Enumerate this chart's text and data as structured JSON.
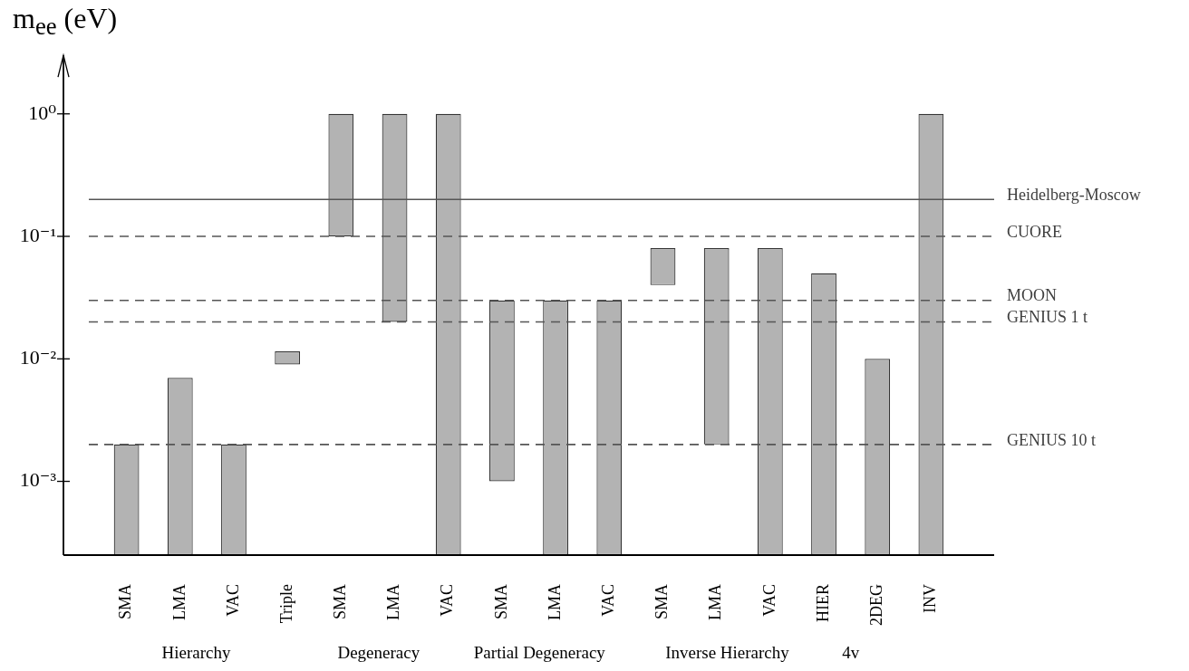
{
  "chart_data": {
    "type": "bar",
    "ylabel": "m$_{ee}$ (eV)",
    "categories": [
      "SMA",
      "LMA",
      "VAC",
      "Triple",
      "SMA",
      "LMA",
      "VAC",
      "SMA",
      "LMA",
      "VAC",
      "SMA",
      "LMA",
      "VAC",
      "HIER",
      "2DEG",
      "INV"
    ],
    "base": [
      0.00025,
      0.00025,
      0.00025,
      0.009,
      0.1,
      0.02,
      0.00025,
      0.001,
      0.00025,
      0.00025,
      0.04,
      0.002,
      0.00025,
      0.00025,
      0.00025,
      0.00025
    ],
    "values": [
      0.00175,
      0.00675,
      0.00175,
      0.0025,
      0.9,
      0.98,
      0.99975,
      0.029,
      0.02975,
      0.02975,
      0.04,
      0.078,
      0.07975,
      0.04975,
      0.00975,
      0.99975
    ],
    "color": "#b3b3b3",
    "log": true,
    "ylim": [
      0.00025,
      3
    ],
    "yticks": [
      {
        "value": 0.001,
        "label": "10⁻³"
      },
      {
        "value": 0.01,
        "label": "10⁻²"
      },
      {
        "value": 0.1,
        "label": "10⁻¹"
      },
      {
        "value": 1,
        "label": "10⁰"
      }
    ],
    "ref_lines": [
      {
        "axis": "y",
        "value": 0.2,
        "label": "Heidelberg-Moscow",
        "color": "#555555",
        "line_style": "solid"
      },
      {
        "axis": "y",
        "value": 0.1,
        "label": "CUORE",
        "color": "#555555",
        "line_style": "dashed"
      },
      {
        "axis": "y",
        "value": 0.03,
        "label": "MOON",
        "color": "#555555",
        "line_style": "dashed"
      },
      {
        "axis": "y",
        "value": 0.02,
        "label": "GENIUS 1 t",
        "color": "#555555",
        "line_style": "dashed"
      },
      {
        "axis": "y",
        "value": 0.002,
        "label": "GENIUS 10 t",
        "color": "#555555",
        "line_style": "dashed"
      }
    ],
    "annotations": [
      "Hierarchy",
      "Degeneracy",
      "Partial Degeneracy",
      "Inverse Hierarchy",
      "4v"
    ]
  }
}
